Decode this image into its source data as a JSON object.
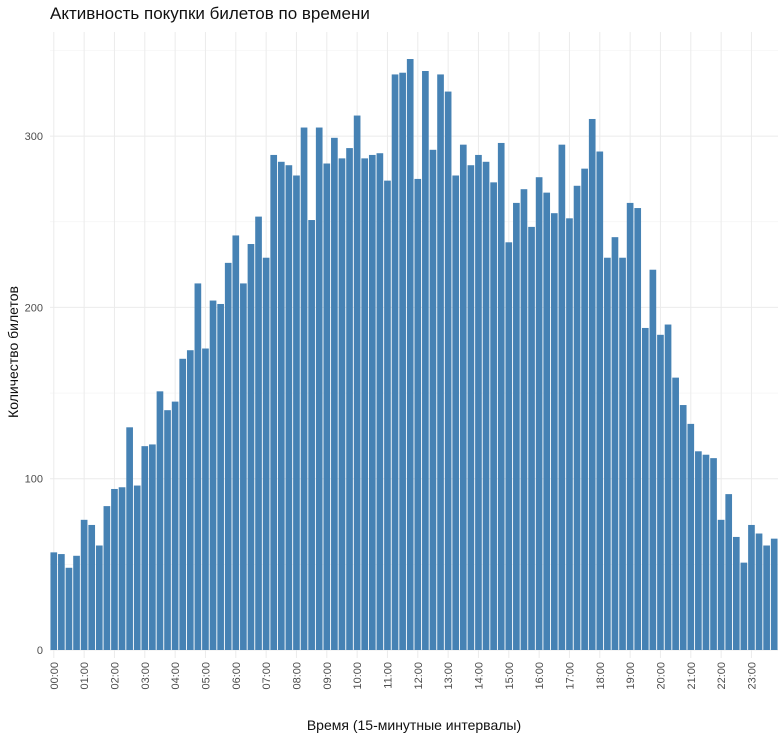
{
  "chart_data": {
    "type": "bar",
    "title": "Активность покупки билетов по времени",
    "xlabel": "Время (15-минутные интервалы)",
    "ylabel": "Количество билетов",
    "bar_color": "#4682b4",
    "grid": true,
    "ylim": [
      0,
      350
    ],
    "y_ticks": [
      0,
      100,
      200,
      300
    ],
    "x_ticks": [
      "00:00",
      "01:00",
      "02:00",
      "03:00",
      "04:00",
      "05:00",
      "06:00",
      "07:00",
      "08:00",
      "09:00",
      "10:00",
      "11:00",
      "12:00",
      "13:00",
      "14:00",
      "15:00",
      "16:00",
      "17:00",
      "18:00",
      "19:00",
      "20:00",
      "21:00",
      "22:00",
      "23:00"
    ],
    "values": [
      57,
      56,
      48,
      55,
      76,
      73,
      61,
      84,
      94,
      95,
      130,
      96,
      119,
      120,
      151,
      140,
      145,
      170,
      175,
      214,
      176,
      204,
      202,
      226,
      242,
      214,
      237,
      253,
      229,
      289,
      285,
      283,
      277,
      305,
      251,
      305,
      284,
      299,
      287,
      293,
      312,
      287,
      289,
      290,
      274,
      336,
      337,
      345,
      275,
      338,
      292,
      336,
      326,
      277,
      295,
      283,
      289,
      285,
      273,
      296,
      238,
      261,
      269,
      247,
      276,
      267,
      255,
      295,
      252,
      271,
      281,
      310,
      291,
      229,
      241,
      229,
      261,
      258,
      188,
      222,
      184,
      190,
      159,
      143,
      132,
      116,
      114,
      112,
      76,
      91,
      66,
      51,
      73,
      68,
      61,
      65
    ]
  }
}
